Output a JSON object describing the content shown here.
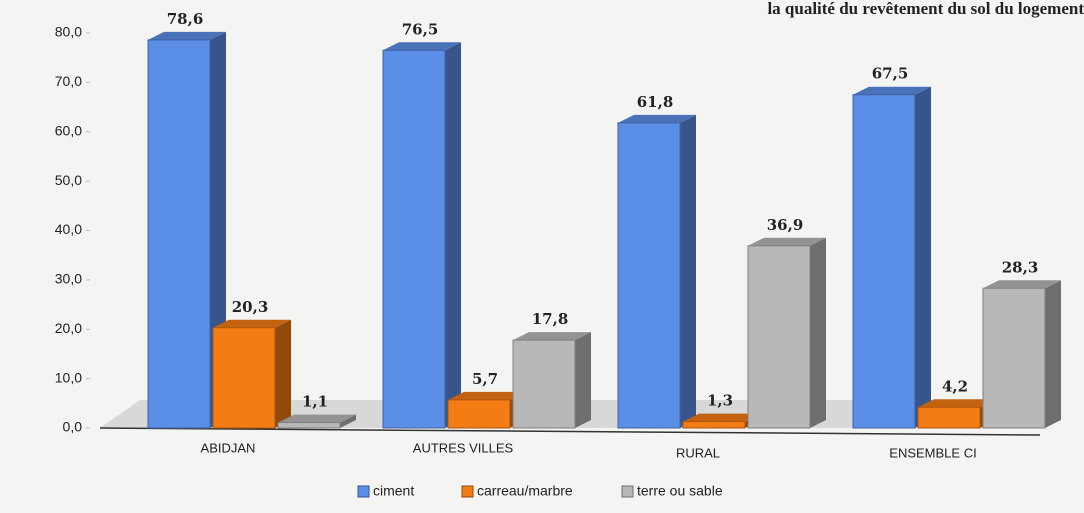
{
  "chart_data": {
    "type": "bar",
    "title": "la qualité du revêtement du sol du logement",
    "categories": [
      "ABIDJAN",
      "AUTRES VILLES",
      "RURAL",
      "ENSEMBLE CI"
    ],
    "series": [
      {
        "name": "ciment",
        "color": "#5b8ee6",
        "values": [
          78.6,
          76.5,
          61.8,
          67.5
        ],
        "value_labels": [
          "78,6",
          "76,5",
          "61,8",
          "67,5"
        ]
      },
      {
        "name": "carreau/marbre",
        "color": "#f47c14",
        "values": [
          20.3,
          5.7,
          1.3,
          4.2
        ],
        "value_labels": [
          "20,3",
          "5,7",
          "1,3",
          "4,2"
        ]
      },
      {
        "name": "terre ou sable",
        "color": "#b8b8b8",
        "values": [
          1.1,
          17.8,
          36.9,
          28.3
        ],
        "value_labels": [
          "1,1",
          "17,8",
          "36,9",
          "28,3"
        ]
      }
    ],
    "ylim": [
      0,
      80
    ],
    "yticks": [
      {
        "value": 0,
        "label": "0,0"
      },
      {
        "value": 10,
        "label": "10,0"
      },
      {
        "value": 20,
        "label": "20,0"
      },
      {
        "value": 30,
        "label": "30,0"
      },
      {
        "value": 40,
        "label": "40,0"
      },
      {
        "value": 50,
        "label": "50,0"
      },
      {
        "value": 60,
        "label": "60,0"
      },
      {
        "value": 70,
        "label": "70,0"
      },
      {
        "value": 80,
        "label": "80,0"
      }
    ]
  }
}
